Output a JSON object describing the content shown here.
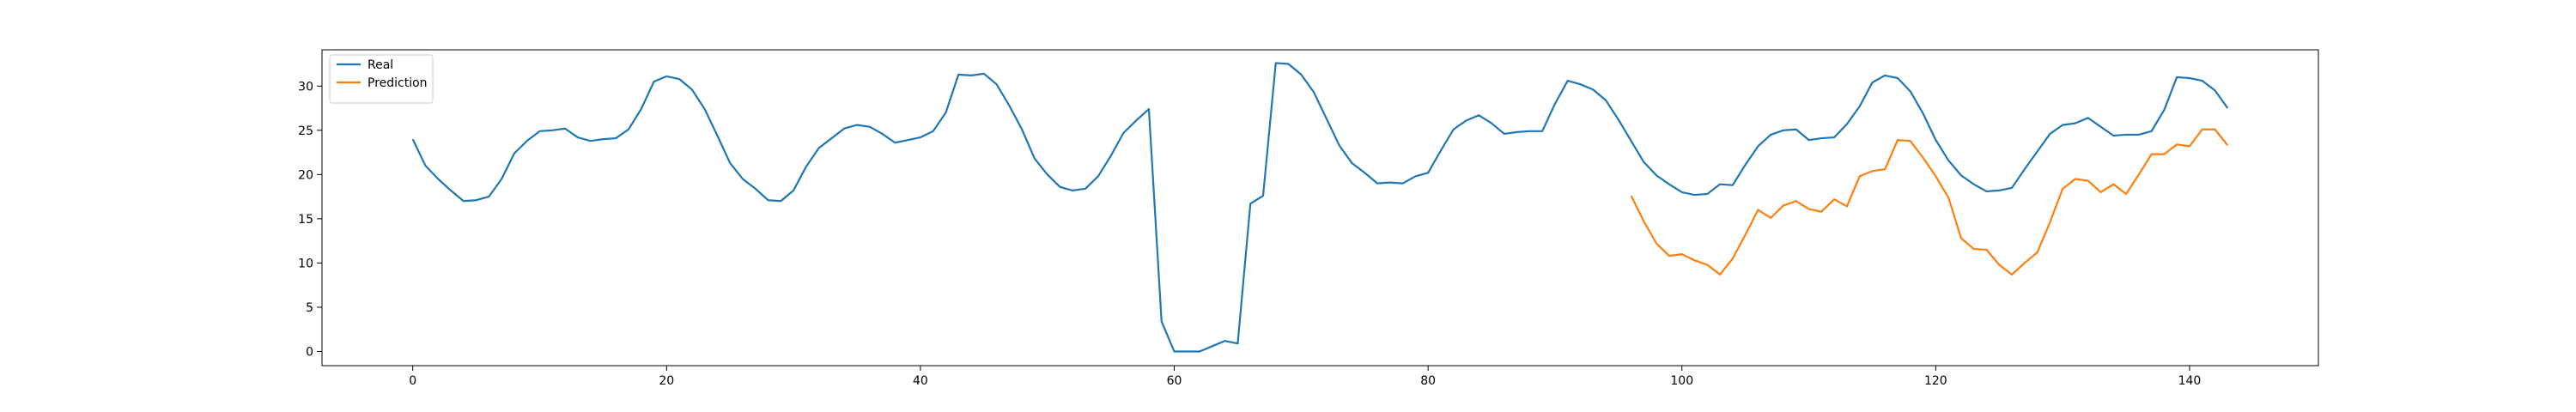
{
  "chart_data": {
    "type": "line",
    "title": "",
    "xlabel": "",
    "ylabel": "",
    "xlim": [
      -7.15,
      150.15
    ],
    "ylim": [
      -1.6,
      34.1
    ],
    "xticks": [
      0,
      20,
      40,
      60,
      80,
      100,
      120,
      140
    ],
    "yticks": [
      0,
      5,
      10,
      15,
      20,
      25,
      30
    ],
    "grid": false,
    "legend_position": "upper-left",
    "series": [
      {
        "name": "Real",
        "color": "#1f77b4",
        "x_start": 0,
        "values": [
          24.0,
          21.0,
          19.5,
          18.2,
          17.0,
          17.1,
          17.5,
          19.5,
          22.4,
          23.8,
          24.9,
          25.0,
          25.2,
          24.2,
          23.8,
          24.0,
          24.1,
          25.1,
          27.4,
          30.5,
          31.1,
          30.8,
          29.6,
          27.4,
          24.4,
          21.3,
          19.5,
          18.4,
          17.1,
          17.0,
          18.2,
          20.9,
          23.0,
          24.1,
          25.2,
          25.6,
          25.4,
          24.6,
          23.6,
          23.9,
          24.2,
          24.9,
          27.0,
          31.3,
          31.2,
          31.4,
          30.2,
          27.8,
          25.1,
          21.8,
          20.0,
          18.6,
          18.2,
          18.4,
          19.8,
          22.1,
          24.7,
          26.1,
          27.4,
          3.4,
          0.0,
          0.0,
          0.0,
          0.6,
          1.2,
          0.9,
          16.7,
          17.6,
          32.6,
          32.5,
          31.3,
          29.3,
          26.3,
          23.3,
          21.3,
          20.2,
          19.0,
          19.1,
          19.0,
          19.8,
          20.2,
          22.7,
          25.1,
          26.1,
          26.7,
          25.8,
          24.6,
          24.8,
          24.9,
          24.9,
          28.0,
          30.6,
          30.2,
          29.6,
          28.4,
          26.2,
          23.8,
          21.4,
          19.9,
          18.9,
          18.0,
          17.7,
          17.8,
          18.9,
          18.8,
          21.1,
          23.2,
          24.5,
          25.0,
          25.1,
          23.9,
          24.1,
          24.2,
          25.7,
          27.7,
          30.4,
          31.2,
          30.9,
          29.4,
          26.9,
          23.9,
          21.6,
          19.9,
          18.9,
          18.1,
          18.2,
          18.5,
          20.6,
          22.6,
          24.6,
          25.6,
          25.8,
          26.4,
          25.4,
          24.4,
          24.5,
          24.5,
          24.9,
          27.3,
          31.0,
          30.9,
          30.6,
          29.5,
          27.5
        ]
      },
      {
        "name": "Prediction",
        "color": "#ff7f0e",
        "x_start": 96,
        "values": [
          17.6,
          14.7,
          12.2,
          10.8,
          11.0,
          10.3,
          9.8,
          8.7,
          10.5,
          13.2,
          16.0,
          15.1,
          16.5,
          17.0,
          16.1,
          15.8,
          17.2,
          16.4,
          19.8,
          20.4,
          20.6,
          23.9,
          23.8,
          21.9,
          19.8,
          17.4,
          12.8,
          11.6,
          11.5,
          9.8,
          8.7,
          10.0,
          11.2,
          14.6,
          18.4,
          19.5,
          19.3,
          18.0,
          18.9,
          17.8,
          20.0,
          22.3,
          22.3,
          23.4,
          23.2,
          25.1,
          25.1,
          23.3
        ]
      }
    ]
  }
}
